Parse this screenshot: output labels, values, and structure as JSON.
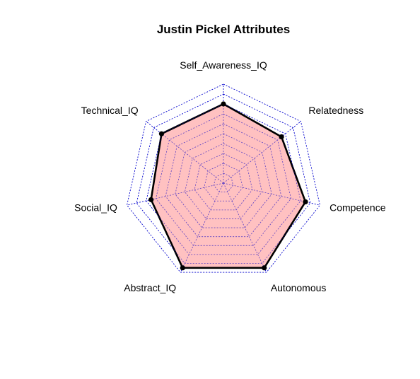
{
  "chart_data": {
    "type": "radar",
    "title": "Justin Pickel Attributes",
    "axes": [
      "Self_Awareness_IQ",
      "Relatedness",
      "Competence",
      "Autonomous",
      "Abstract_IQ",
      "Social_IQ",
      "Technical_IQ"
    ],
    "values": [
      0.8,
      0.75,
      0.85,
      0.95,
      0.95,
      0.75,
      0.8
    ],
    "range": [
      0,
      1
    ],
    "grid_levels": 10,
    "grid_color": "#0000cd",
    "fill_color": "#ffb6b6",
    "line_color": "#000000",
    "legend": "none"
  }
}
